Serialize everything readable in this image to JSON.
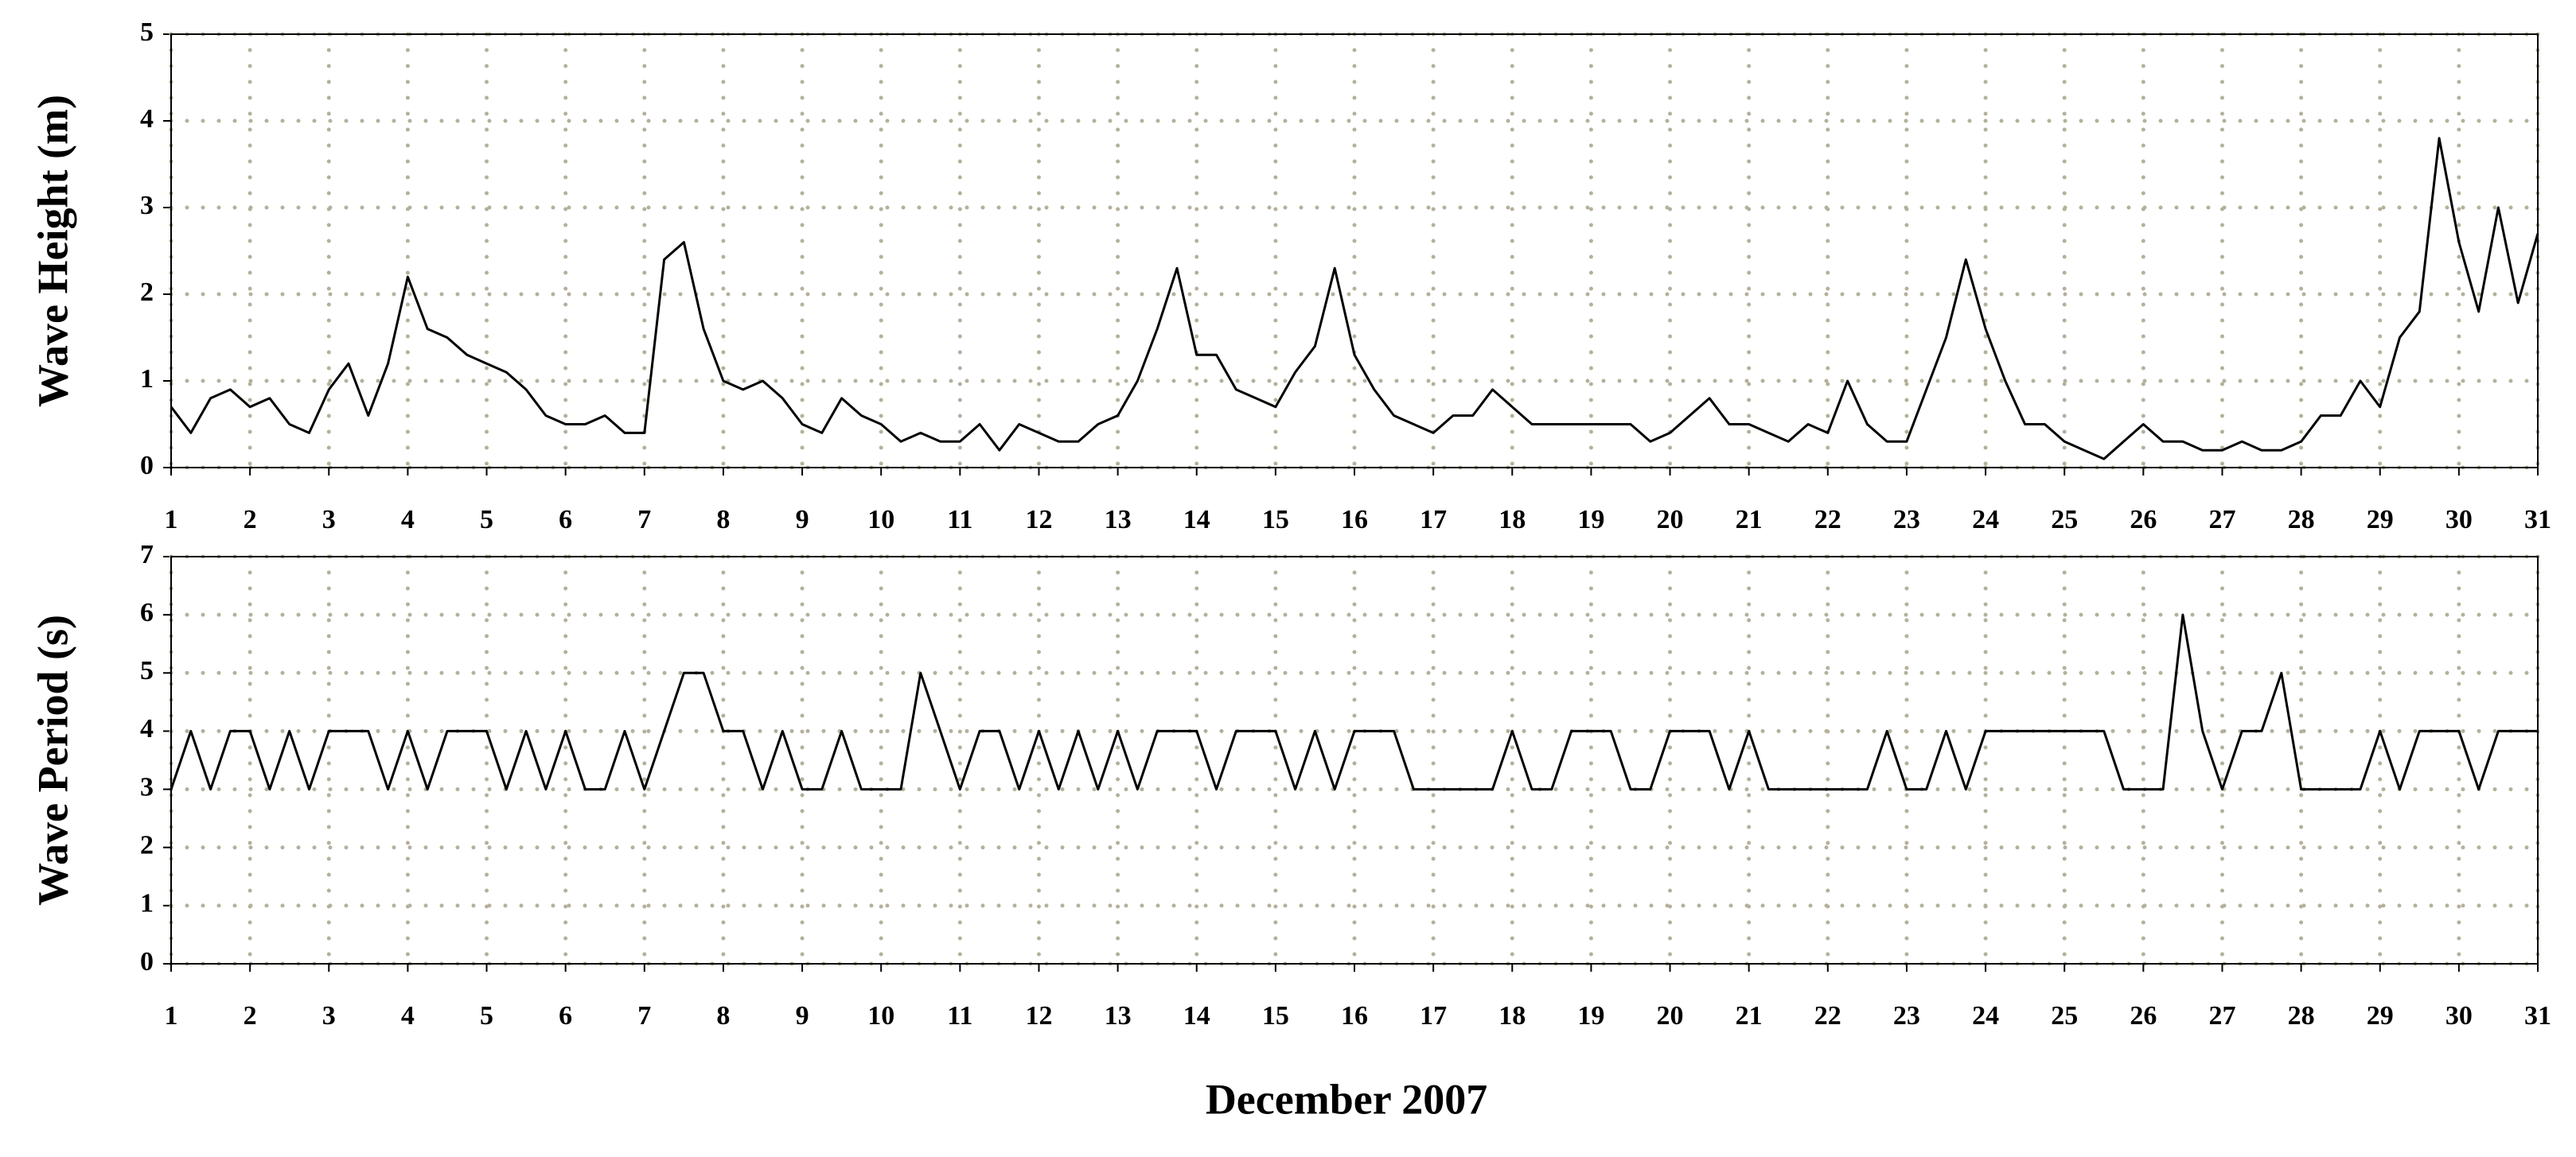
{
  "chart_data": [
    {
      "type": "line",
      "ylabel": "Wave Height (m)",
      "x": [
        1,
        1.25,
        1.5,
        1.75,
        2,
        2.25,
        2.5,
        2.75,
        3,
        3.25,
        3.5,
        3.75,
        4,
        4.25,
        4.5,
        4.75,
        5,
        5.25,
        5.5,
        5.75,
        6,
        6.25,
        6.5,
        6.75,
        7,
        7.25,
        7.5,
        7.75,
        8,
        8.25,
        8.5,
        8.75,
        9,
        9.25,
        9.5,
        9.75,
        10,
        10.25,
        10.5,
        10.75,
        11,
        11.25,
        11.5,
        11.75,
        12,
        12.25,
        12.5,
        12.75,
        13,
        13.25,
        13.5,
        13.75,
        14,
        14.25,
        14.5,
        14.75,
        15,
        15.25,
        15.5,
        15.75,
        16,
        16.25,
        16.5,
        16.75,
        17,
        17.25,
        17.5,
        17.75,
        18,
        18.25,
        18.5,
        18.75,
        19,
        19.25,
        19.5,
        19.75,
        20,
        20.25,
        20.5,
        20.75,
        21,
        21.25,
        21.5,
        21.75,
        22,
        22.25,
        22.5,
        22.75,
        23,
        23.25,
        23.5,
        23.75,
        24,
        24.25,
        24.5,
        24.75,
        25,
        25.25,
        25.5,
        25.75,
        26,
        26.25,
        26.5,
        26.75,
        27,
        27.25,
        27.5,
        27.75,
        28,
        28.25,
        28.5,
        28.75,
        29,
        29.25,
        29.5,
        29.75,
        30,
        30.25,
        30.5,
        30.75,
        31
      ],
      "series": [
        {
          "color": "#000000",
          "values": [
            0.7,
            0.4,
            0.8,
            0.9,
            0.7,
            0.8,
            0.5,
            0.4,
            0.9,
            1.2,
            0.6,
            1.2,
            2.2,
            1.6,
            1.5,
            1.3,
            1.2,
            1.1,
            0.9,
            0.6,
            0.5,
            0.5,
            0.6,
            0.4,
            0.4,
            2.4,
            2.6,
            1.6,
            1.0,
            0.9,
            1.0,
            0.8,
            0.5,
            0.4,
            0.8,
            0.6,
            0.5,
            0.3,
            0.4,
            0.3,
            0.3,
            0.5,
            0.2,
            0.5,
            0.4,
            0.3,
            0.3,
            0.5,
            0.6,
            1.0,
            1.6,
            2.3,
            1.3,
            1.3,
            0.9,
            0.8,
            0.7,
            1.1,
            1.4,
            2.3,
            1.3,
            0.9,
            0.6,
            0.5,
            0.4,
            0.6,
            0.6,
            0.9,
            0.7,
            0.5,
            0.5,
            0.5,
            0.5,
            0.5,
            0.5,
            0.3,
            0.4,
            0.6,
            0.8,
            0.5,
            0.5,
            0.4,
            0.3,
            0.5,
            0.4,
            1.0,
            0.5,
            0.3,
            0.3,
            0.9,
            1.5,
            2.4,
            1.6,
            1.0,
            0.5,
            0.5,
            0.3,
            0.2,
            0.1,
            0.3,
            0.5,
            0.3,
            0.3,
            0.2,
            0.2,
            0.3,
            0.2,
            0.2,
            0.3,
            0.6,
            0.6,
            1.0,
            0.7,
            1.5,
            1.8,
            3.8,
            2.6,
            1.8,
            3.0,
            1.9,
            2.7
          ]
        }
      ],
      "xlim": [
        1,
        31
      ],
      "xticks": [
        1,
        2,
        3,
        4,
        5,
        6,
        7,
        8,
        9,
        10,
        11,
        12,
        13,
        14,
        15,
        16,
        17,
        18,
        19,
        20,
        21,
        22,
        23,
        24,
        25,
        26,
        27,
        28,
        29,
        30,
        31
      ],
      "ylim": [
        0,
        5
      ],
      "yticks": [
        0,
        1,
        2,
        3,
        4,
        5
      ],
      "grid": true
    },
    {
      "type": "line",
      "ylabel": "Wave Period (s)",
      "xlabel": "December 2007",
      "x": [
        1,
        1.25,
        1.5,
        1.75,
        2,
        2.25,
        2.5,
        2.75,
        3,
        3.25,
        3.5,
        3.75,
        4,
        4.25,
        4.5,
        4.75,
        5,
        5.25,
        5.5,
        5.75,
        6,
        6.25,
        6.5,
        6.75,
        7,
        7.25,
        7.5,
        7.75,
        8,
        8.25,
        8.5,
        8.75,
        9,
        9.25,
        9.5,
        9.75,
        10,
        10.25,
        10.5,
        10.75,
        11,
        11.25,
        11.5,
        11.75,
        12,
        12.25,
        12.5,
        12.75,
        13,
        13.25,
        13.5,
        13.75,
        14,
        14.25,
        14.5,
        14.75,
        15,
        15.25,
        15.5,
        15.75,
        16,
        16.25,
        16.5,
        16.75,
        17,
        17.25,
        17.5,
        17.75,
        18,
        18.25,
        18.5,
        18.75,
        19,
        19.25,
        19.5,
        19.75,
        20,
        20.25,
        20.5,
        20.75,
        21,
        21.25,
        21.5,
        21.75,
        22,
        22.25,
        22.5,
        22.75,
        23,
        23.25,
        23.5,
        23.75,
        24,
        24.25,
        24.5,
        24.75,
        25,
        25.25,
        25.5,
        25.75,
        26,
        26.25,
        26.5,
        26.75,
        27,
        27.25,
        27.5,
        27.75,
        28,
        28.25,
        28.5,
        28.75,
        29,
        29.25,
        29.5,
        29.75,
        30,
        30.25,
        30.5,
        30.75,
        31
      ],
      "series": [
        {
          "color": "#000000",
          "values": [
            3,
            4,
            3,
            4,
            4,
            3,
            4,
            3,
            4,
            4,
            4,
            3,
            4,
            3,
            4,
            4,
            4,
            3,
            4,
            3,
            4,
            3,
            3,
            4,
            3,
            4,
            5,
            5,
            4,
            4,
            3,
            4,
            3,
            3,
            4,
            3,
            3,
            3,
            5,
            4,
            3,
            4,
            4,
            3,
            4,
            3,
            4,
            3,
            4,
            3,
            4,
            4,
            4,
            3,
            4,
            4,
            4,
            3,
            4,
            3,
            4,
            4,
            4,
            3,
            3,
            3,
            3,
            3,
            4,
            3,
            3,
            4,
            4,
            4,
            3,
            3,
            4,
            4,
            4,
            3,
            4,
            3,
            3,
            3,
            3,
            3,
            3,
            4,
            3,
            3,
            4,
            3,
            4,
            4,
            4,
            4,
            4,
            4,
            4,
            3,
            3,
            3,
            6,
            4,
            3,
            4,
            4,
            5,
            3,
            3,
            3,
            3,
            4,
            3,
            4,
            4,
            4,
            3,
            4,
            4,
            4
          ]
        }
      ],
      "xlim": [
        1,
        31
      ],
      "xticks": [
        1,
        2,
        3,
        4,
        5,
        6,
        7,
        8,
        9,
        10,
        11,
        12,
        13,
        14,
        15,
        16,
        17,
        18,
        19,
        20,
        21,
        22,
        23,
        24,
        25,
        26,
        27,
        28,
        29,
        30,
        31
      ],
      "ylim": [
        0,
        7
      ],
      "yticks": [
        0,
        1,
        2,
        3,
        4,
        5,
        6,
        7
      ],
      "grid": true
    }
  ]
}
